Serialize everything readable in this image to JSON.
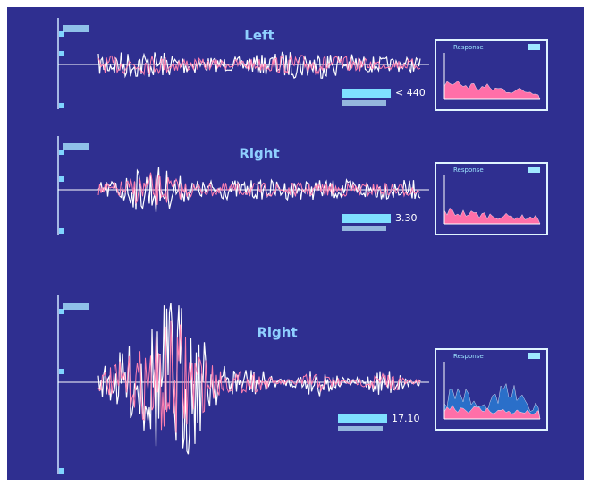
{
  "panels": [
    {
      "title": "Left",
      "reading": "< 440",
      "inset_label": "Response"
    },
    {
      "title": "Right",
      "reading": "3.30",
      "inset_label": "Response"
    },
    {
      "title": "Right",
      "reading": "17.10",
      "inset_label": "Response"
    }
  ]
}
